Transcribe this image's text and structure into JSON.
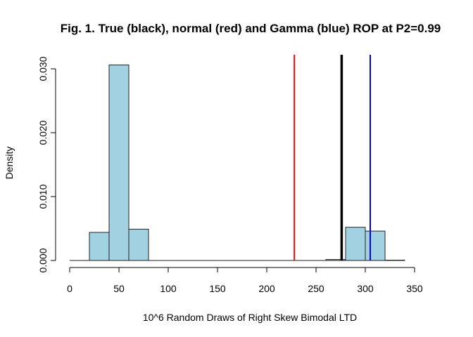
{
  "chart_data": {
    "type": "bar",
    "title": "Fig. 1. True (black), normal (red) and Gamma (blue) ROP at P2=0.99",
    "xlabel": "10^6 Random Draws of Right Skew Bimodal LTD",
    "ylabel": "Density",
    "xlim": [
      0,
      340
    ],
    "ylim": [
      0,
      0.03
    ],
    "x_ticks": [
      0,
      50,
      100,
      150,
      200,
      250,
      300,
      350
    ],
    "y_ticks": [
      0.0,
      0.01,
      0.02,
      0.03
    ],
    "x_tick_labels": [
      "0",
      "50",
      "100",
      "150",
      "200",
      "250",
      "300",
      "350"
    ],
    "y_tick_labels": [
      "0.000",
      "0.010",
      "0.020",
      "0.030"
    ],
    "bins": [
      {
        "start": 0,
        "end": 20,
        "density": 0.0
      },
      {
        "start": 20,
        "end": 40,
        "density": 0.0044
      },
      {
        "start": 40,
        "end": 60,
        "density": 0.0306
      },
      {
        "start": 60,
        "end": 80,
        "density": 0.0049
      },
      {
        "start": 80,
        "end": 100,
        "density": 0.0
      },
      {
        "start": 100,
        "end": 120,
        "density": 0.0
      },
      {
        "start": 120,
        "end": 140,
        "density": 0.0
      },
      {
        "start": 140,
        "end": 160,
        "density": 0.0
      },
      {
        "start": 160,
        "end": 180,
        "density": 0.0
      },
      {
        "start": 180,
        "end": 200,
        "density": 0.0
      },
      {
        "start": 200,
        "end": 220,
        "density": 0.0
      },
      {
        "start": 220,
        "end": 240,
        "density": 0.0
      },
      {
        "start": 240,
        "end": 260,
        "density": 0.0
      },
      {
        "start": 260,
        "end": 280,
        "density": 0.00015
      },
      {
        "start": 280,
        "end": 300,
        "density": 0.0052
      },
      {
        "start": 300,
        "end": 320,
        "density": 0.0046
      },
      {
        "start": 320,
        "end": 340,
        "density": 5e-05
      }
    ],
    "bar_fill": "#a2d1e2",
    "bar_stroke": "#222222",
    "vlines": [
      {
        "x": 228,
        "color": "#ff0000"
      },
      {
        "x": 276,
        "color": "#000000"
      },
      {
        "x": 305,
        "color": "#0000ff"
      }
    ]
  }
}
